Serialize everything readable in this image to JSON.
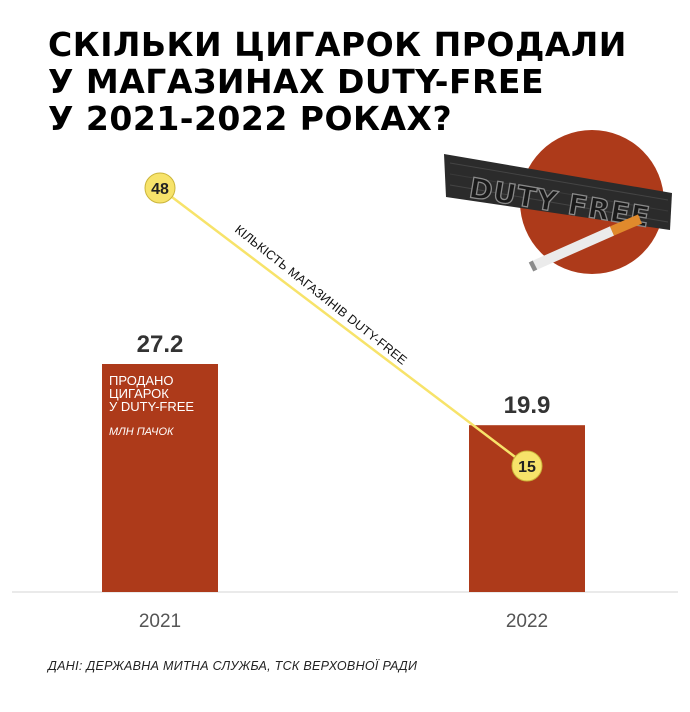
{
  "title_lines": [
    "СКІЛЬКИ ЦИГАРОК ПРОДАЛИ",
    "У МАГАЗИНАХ DUTY-FREE",
    "У 2021-2022 РОКАХ?"
  ],
  "source": "ДАНІ: ДЕРЖАВНА МИТНА СЛУЖБА, ТСК ВЕРХОВНОЇ РАДИ",
  "illustration": {
    "sign_text": "DUTY FREE",
    "icon": "cigarette-duty-free-illustration",
    "circle_color": "#ad3a1a",
    "sign_color": "#2b2b2b"
  },
  "chart_data": {
    "type": "bar",
    "categories": [
      "2021",
      "2022"
    ],
    "series": [
      {
        "name": "ПРОДАНО ЦИГАРОК У DUTY-FREE",
        "unit": "МЛН ПАЧОК",
        "values": [
          27.2,
          19.9
        ],
        "color": "#ad3a1a",
        "label_lines": [
          "ПРОДАНО",
          "ЦИГАРОК",
          "У DUTY-FREE"
        ]
      },
      {
        "name": "КІЛЬКІСТЬ МАГАЗИНІВ DUTY-FREE",
        "type": "line",
        "values": [
          48,
          15
        ],
        "color": "#f7e36a"
      }
    ],
    "ylim": [
      0,
      27.2
    ],
    "grid": false,
    "legend": "none"
  }
}
